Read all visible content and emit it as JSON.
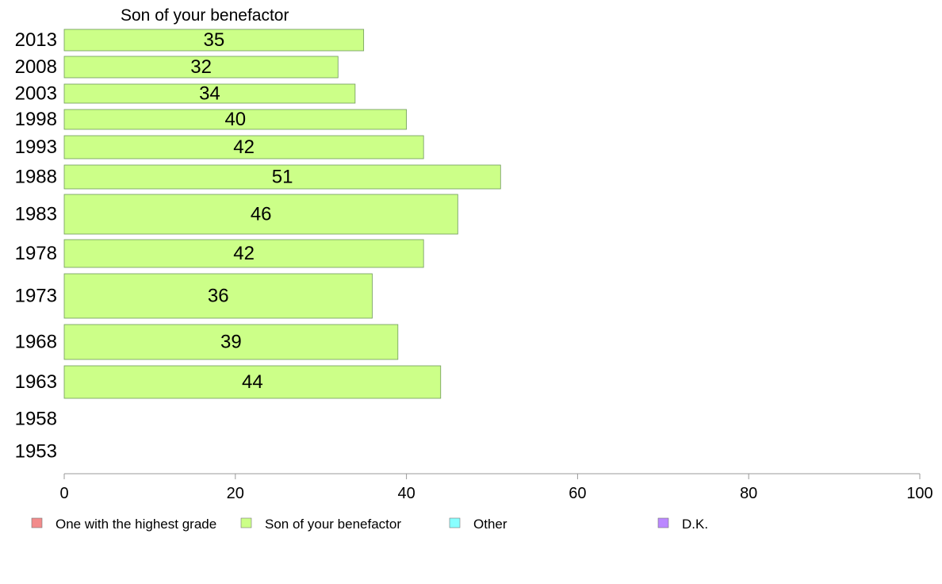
{
  "chart_data": {
    "type": "bar",
    "orientation": "horizontal",
    "title": "Son of your benefactor",
    "xlabel": "",
    "ylabel": "",
    "xlim": [
      0,
      100
    ],
    "x_ticks": [
      "0",
      "20",
      "40",
      "60",
      "80",
      "100"
    ],
    "grid": false,
    "categories": [
      "2013",
      "2008",
      "2003",
      "1998",
      "1993",
      "1988",
      "1983",
      "1978",
      "1973",
      "1968",
      "1963",
      "1958",
      "1953"
    ],
    "series": [
      {
        "name": "Son of your benefactor",
        "color": "#ccff88",
        "values": [
          35,
          32,
          34,
          40,
          42,
          51,
          46,
          42,
          36,
          39,
          44,
          null,
          null
        ],
        "labels": [
          "35",
          "32",
          "34",
          "40",
          "42",
          "51",
          "46",
          "42",
          "36",
          "39",
          "44",
          "",
          ""
        ]
      }
    ],
    "legend": {
      "placement": "bottom",
      "items": [
        {
          "label": "One with the highest grade",
          "color": "#f28b8b"
        },
        {
          "label": "Son of your benefactor",
          "color": "#ccff88"
        },
        {
          "label": "Other",
          "color": "#88ffff"
        },
        {
          "label": "D.K.",
          "color": "#bb88ff"
        }
      ]
    }
  }
}
